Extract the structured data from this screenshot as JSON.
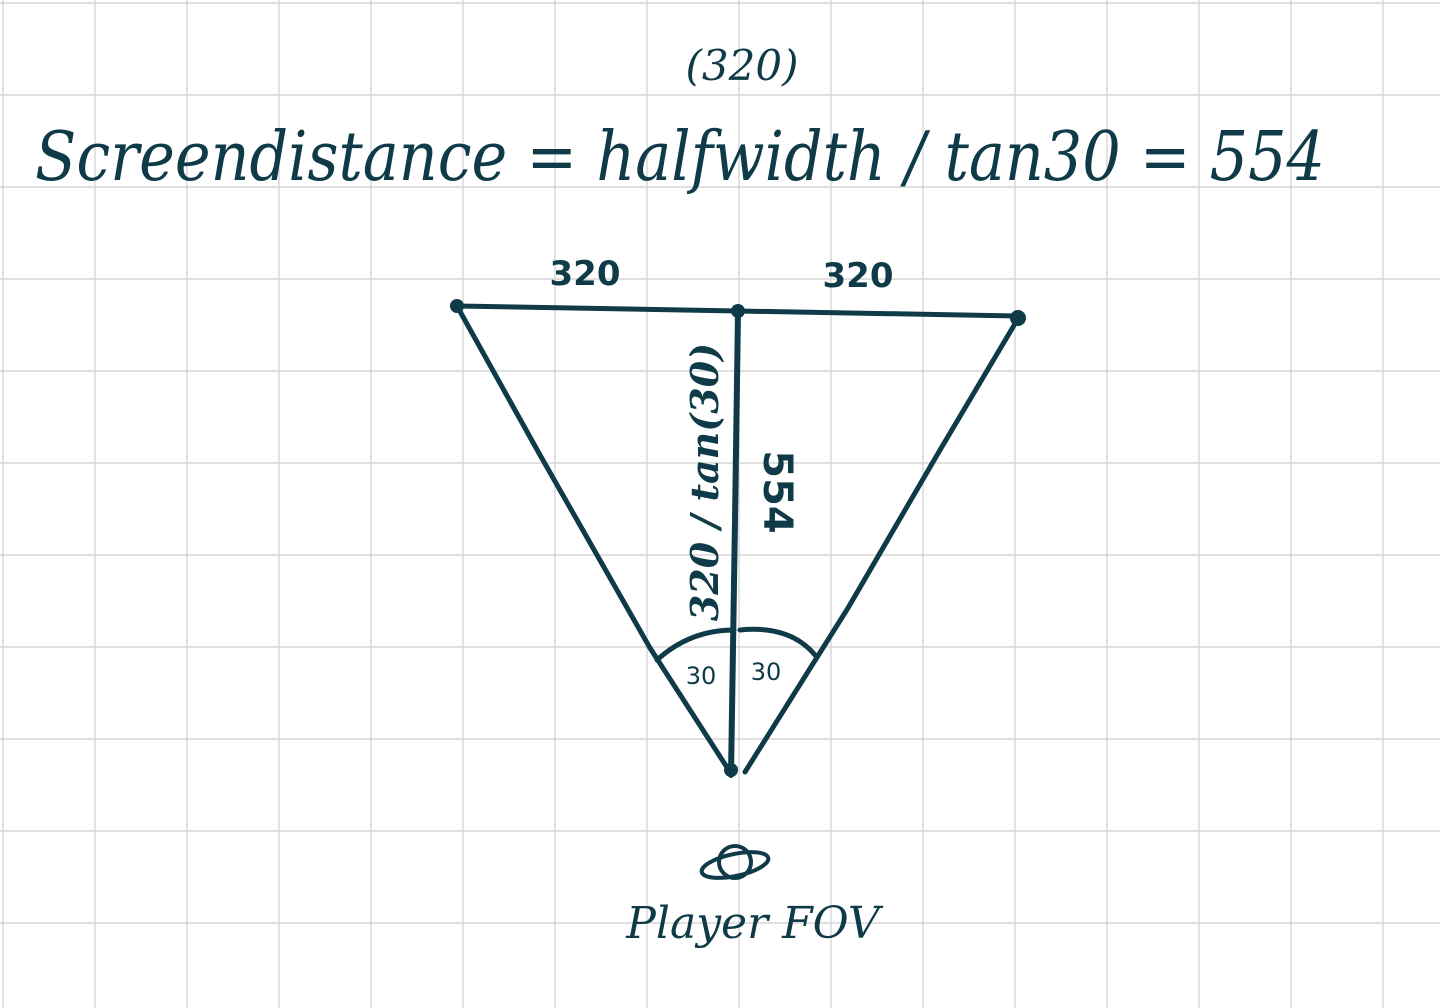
{
  "ink_color": "#0f3a47",
  "grid_color": "#d6d6d6",
  "formula": {
    "main": "Screendistance = halfwidth / tan30 = 554",
    "note": "(320)"
  },
  "labels": {
    "left_half": "320",
    "right_half": "320",
    "vertical_formula": "320 / tan(30)",
    "vertical_value": "554",
    "angle_left": "30",
    "angle_right": "30",
    "player": "Player FOV"
  },
  "icons": {
    "player": "planet-icon"
  }
}
